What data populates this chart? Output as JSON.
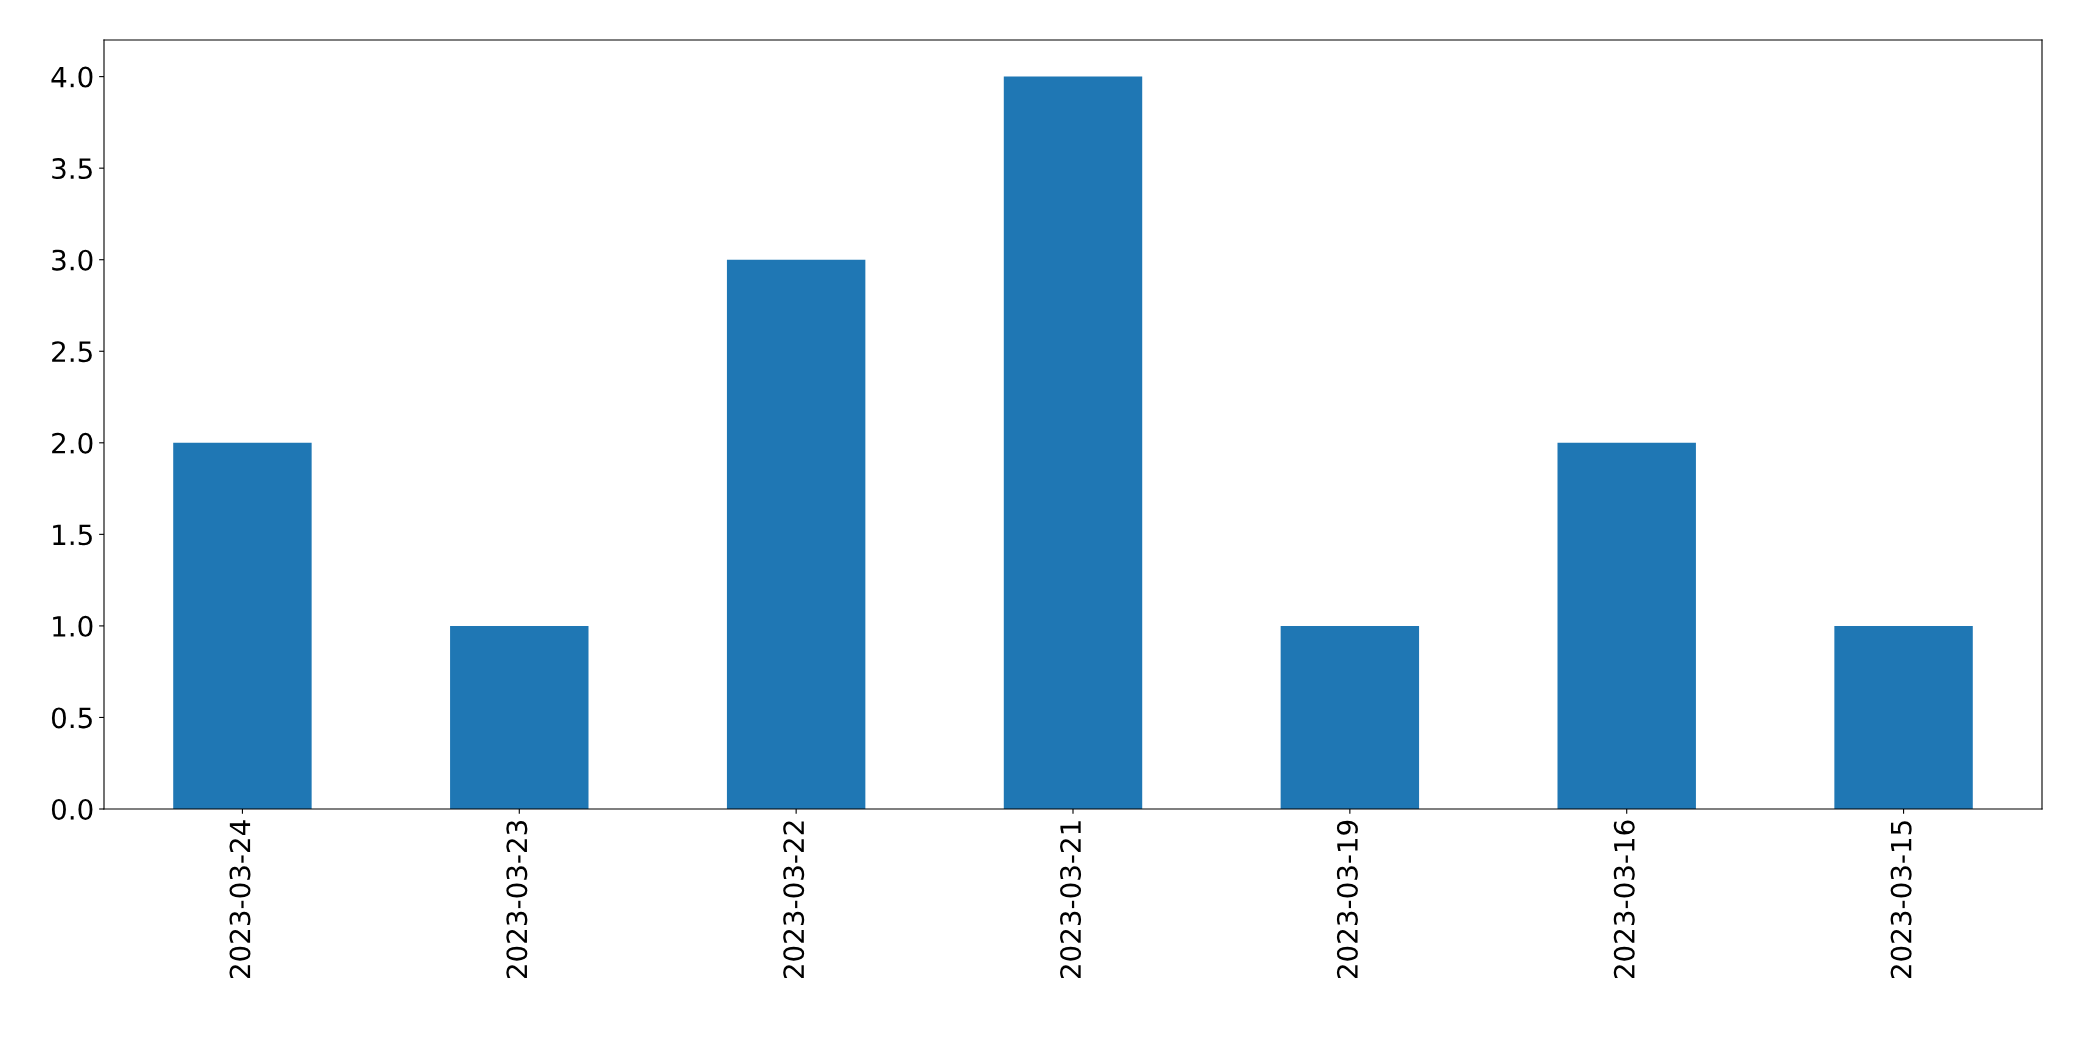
{
  "chart_data": {
    "type": "bar",
    "categories": [
      "2023-03-24",
      "2023-03-23",
      "2023-03-22",
      "2023-03-21",
      "2023-03-19",
      "2023-03-16",
      "2023-03-15"
    ],
    "values": [
      2,
      1,
      3,
      4,
      1,
      2,
      1
    ],
    "color": "#1f77b4",
    "ylim": [
      0,
      4.2
    ],
    "yticks": [
      {
        "value": 0,
        "label": "0.0"
      },
      {
        "value": 0.5,
        "label": "0.5"
      },
      {
        "value": 1,
        "label": "1.0"
      },
      {
        "value": 1.5,
        "label": "1.5"
      },
      {
        "value": 2,
        "label": "2.0"
      },
      {
        "value": 2.5,
        "label": "2.5"
      },
      {
        "value": 3,
        "label": "3.0"
      },
      {
        "value": 3.5,
        "label": "3.5"
      },
      {
        "value": 4,
        "label": "4.0"
      }
    ],
    "grid": false,
    "legend": false
  }
}
